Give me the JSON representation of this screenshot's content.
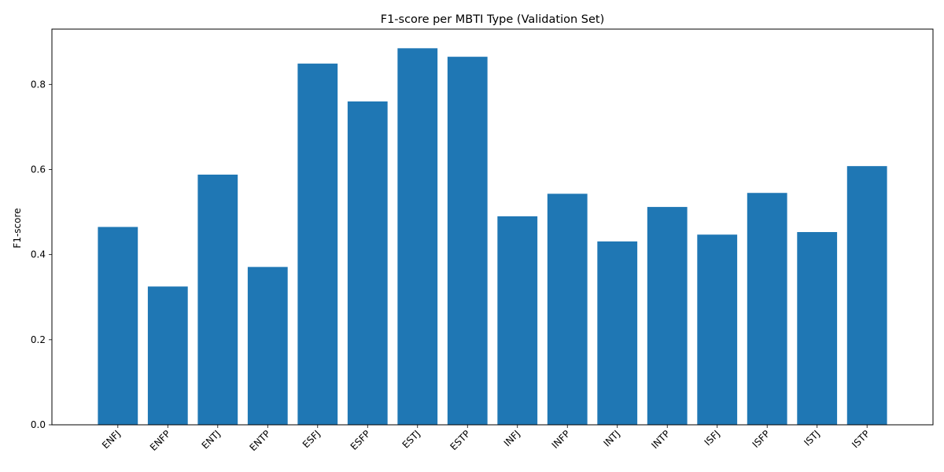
{
  "chart_data": {
    "type": "bar",
    "title": "F1-score per MBTI Type (Validation Set)",
    "xlabel": "",
    "ylabel": "F1-score",
    "categories": [
      "ENFJ",
      "ENFP",
      "ENTJ",
      "ENTP",
      "ESFJ",
      "ESFP",
      "ESTJ",
      "ESTP",
      "INFJ",
      "INFP",
      "INTJ",
      "INTP",
      "ISFJ",
      "ISFP",
      "ISTJ",
      "ISTP"
    ],
    "values": [
      0.465,
      0.325,
      0.588,
      0.371,
      0.849,
      0.76,
      0.885,
      0.865,
      0.49,
      0.543,
      0.431,
      0.512,
      0.447,
      0.545,
      0.453,
      0.608
    ],
    "ylim": [
      0,
      0.93
    ],
    "yticks": [
      0.0,
      0.2,
      0.4,
      0.6,
      0.8
    ],
    "ytick_labels": [
      "0.0",
      "0.2",
      "0.4",
      "0.6",
      "0.8"
    ],
    "bar_color": "#1f77b4",
    "grid": false,
    "xtick_rotation": 45
  }
}
